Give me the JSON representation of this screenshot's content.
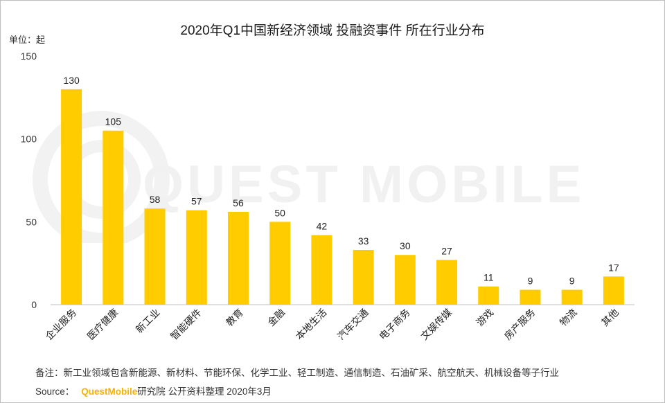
{
  "chart_data": {
    "type": "bar",
    "title": "2020年Q1中国新经济领域 投融资事件 所在行业分布",
    "unit_label": "单位：起",
    "categories": [
      "企业服务",
      "医疗健康",
      "新工业",
      "智能硬件",
      "教育",
      "金融",
      "本地生活",
      "汽车交通",
      "电子商务",
      "文娱传媒",
      "游戏",
      "房产服务",
      "物流",
      "其他"
    ],
    "values": [
      130,
      105,
      58,
      57,
      56,
      50,
      42,
      33,
      30,
      27,
      11,
      9,
      9,
      17
    ],
    "ylim": [
      0,
      150
    ],
    "yticks": [
      0,
      50,
      100,
      150
    ],
    "bar_color": "#ffcc00",
    "grid": false
  },
  "watermark": "QUEST MOBILE",
  "footnote": "备注：新工业领域包含新能源、新材料、节能环保、化学工业、轻工制造、通信制造、石油矿采、航空航天、机械设备等子行业",
  "source": {
    "prefix": "Source：",
    "brand": "QuestMobile",
    "suffix": "研究院 公开资料整理 2020年3月"
  }
}
